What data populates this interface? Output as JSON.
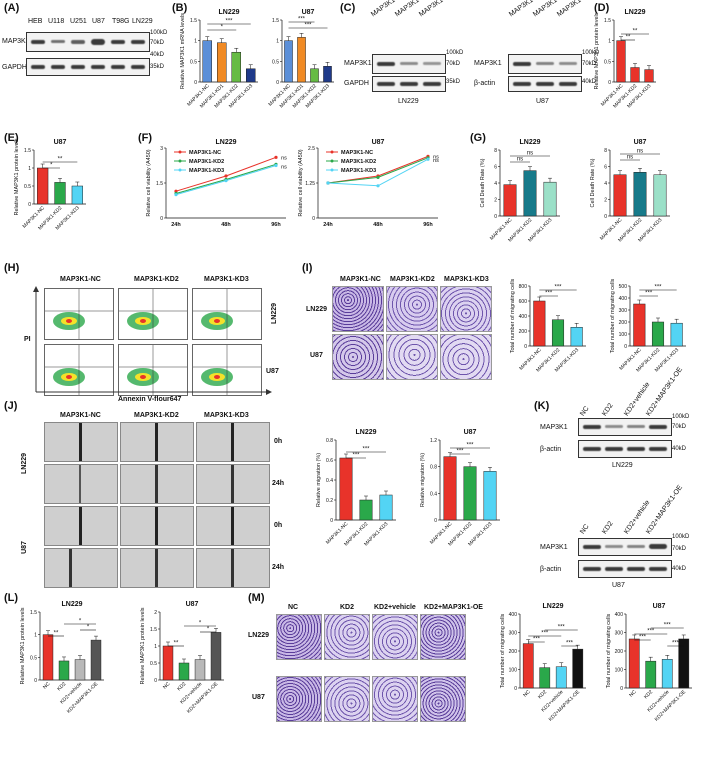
{
  "panel_letters": [
    "(A)",
    "(B)",
    "(C)",
    "(D)",
    "(E)",
    "(F)",
    "(G)",
    "(H)",
    "(I)",
    "(J)",
    "(K)",
    "(L)",
    "(M)"
  ],
  "A": {
    "lanes": [
      "HEB",
      "U118",
      "U251",
      "U87",
      "T98G",
      "LN229"
    ],
    "rows": [
      "MAP3K1",
      "GAPDH"
    ],
    "markers": [
      "100kD",
      "70kD",
      "40kD",
      "35kD"
    ]
  },
  "B": {
    "lines": [
      "LN229",
      "U87"
    ],
    "ylabel": "Relative MAP3K1 mRNA levels",
    "groups": [
      "MAP3K1-NC",
      "MAP3K1-KD1",
      "MAP3K1-KD2",
      "MAP3K1-KD3"
    ],
    "sig": [
      "***",
      "*"
    ]
  },
  "C": {
    "lanes": [
      "MAP3K1-NC",
      "MAP3K1-KD2",
      "MAP3K1-KD3"
    ],
    "left": {
      "rows": [
        "MAP3K1",
        "GAPDH"
      ],
      "markers": [
        "100kD",
        "70kD",
        "35kD"
      ],
      "cell": "LN229"
    },
    "right": {
      "rows": [
        "MAP3K1",
        "β-actin"
      ],
      "markers": [
        "100kD",
        "70kD",
        "40kD"
      ],
      "cell": "U87"
    }
  },
  "D": {
    "title": "LN229",
    "ylabel": "Relative MAP3K1 protein levels",
    "groups": [
      "MAP3K1-NC",
      "MAP3K1-KD2",
      "MAP3K1-KD3"
    ],
    "sig": [
      "**",
      "**"
    ]
  },
  "E": {
    "title": "U87",
    "ylabel": "Relative MAP3K1 protein levels",
    "groups": [
      "MAP3K1-NC",
      "MAP3K1-KD2",
      "MAP3K1-KD3"
    ],
    "sig": [
      "*",
      "**"
    ]
  },
  "F": {
    "titles": [
      "LN229",
      "U87"
    ],
    "ylabel": "Relative cell viability (A450)",
    "x": [
      "24h",
      "48h",
      "96h"
    ],
    "legend": [
      "MAP3K1-NC",
      "MAP3K1-KD2",
      "MAP3K1-KD3"
    ],
    "ns": "ns"
  },
  "G": {
    "titles": [
      "LN229",
      "U87"
    ],
    "ylabel": "Cell Death Rate (%)",
    "groups": [
      "MAP3K1-NC",
      "MAP3K1-KD2",
      "MAP3K1-KD3"
    ],
    "ns": "ns"
  },
  "H": {
    "cols": [
      "MAP3K1-NC",
      "MAP3K1-KD2",
      "MAP3K1-KD3"
    ],
    "rows": [
      "LN229",
      "U87"
    ],
    "ylabel": "PI",
    "xlabel": "Annexin V-flour647"
  },
  "I": {
    "cols": [
      "MAP3K1-NC",
      "MAP3K1-KD2",
      "MAP3K1-KD3"
    ],
    "rows": [
      "LN229",
      "U87"
    ],
    "ylabel": "Total number of migrating cells",
    "groups": [
      "MAP3K1-NC",
      "MAP3K1-KD2",
      "MAP3K1-KD3"
    ],
    "sig": [
      "***",
      "***"
    ]
  },
  "J": {
    "cols": [
      "MAP3K1-NC",
      "MAP3K1-KD2",
      "MAP3K1-KD3"
    ],
    "rows": [
      "LN229",
      "U87"
    ],
    "times": [
      "0h",
      "24h",
      "0h",
      "24h"
    ],
    "titles": [
      "LN229",
      "U87"
    ],
    "ylabel": "Relative migration (%)",
    "groups": [
      "MAP3K1-NC",
      "MAP3K1-KD2",
      "MAP3K1-KD3"
    ],
    "sig": [
      "***",
      "***"
    ]
  },
  "K": {
    "lanes": [
      "NC",
      "KD2",
      "KD2+vehicle",
      "KD2+MAP3K1-OE"
    ],
    "rows": [
      "MAP3K1",
      "β-actin"
    ],
    "markers": [
      "100kD",
      "70kD",
      "40kD"
    ],
    "cells": [
      "LN229",
      "U87"
    ]
  },
  "L": {
    "titles": [
      "LN229",
      "U87"
    ],
    "ylabel": "Relative MAP3K1 protein levels",
    "groups": [
      "NC",
      "KD2",
      "KD2+vehicle",
      "KD2+MAP3K1-OE"
    ],
    "sig": [
      "**",
      "*",
      "*"
    ]
  },
  "M": {
    "cols": [
      "NC",
      "KD2",
      "KD2+vehicle",
      "KD2+MAP3K1-OE"
    ],
    "rows": [
      "LN229",
      "U87"
    ],
    "titles": [
      "LN229",
      "U87"
    ],
    "ylabel": "Total number of migrating cells",
    "groups": [
      "NC",
      "KD2",
      "KD2+vehicle",
      "KD2+MAP3K1-OE"
    ],
    "sig": "***"
  },
  "colors": {
    "nc": "#e8332a",
    "kd1": "#f5a623",
    "kd2": "#2aa84a",
    "kd3": "#53d4f4",
    "blue": "#5b8fd8",
    "orange": "#f08a24",
    "green": "#66bb44",
    "navy": "#1f3a8a",
    "teal": "#177a8a",
    "mint": "#9be0c8",
    "grey": "#b8b8b8",
    "dark": "#555555",
    "black": "#111111",
    "flowhot": "#2aa84a",
    "micro": "#c9b8e6",
    "microdot": "#5a3d9a"
  },
  "chart_data": [
    {
      "panel": "B",
      "type": "bar",
      "title": "LN229",
      "ylabel": "Relative MAP3K1 mRNA levels",
      "categories": [
        "MAP3K1-NC",
        "MAP3K1-KD1",
        "MAP3K1-KD2",
        "MAP3K1-KD3"
      ],
      "values": [
        1.0,
        0.95,
        0.72,
        0.32
      ],
      "ylim": [
        0,
        1.5
      ]
    },
    {
      "panel": "B",
      "type": "bar",
      "title": "U87",
      "ylabel": "Relative MAP3K1 mRNA levels",
      "categories": [
        "MAP3K1-NC",
        "MAP3K1-KD1",
        "MAP3K1-KD2",
        "MAP3K1-KD3"
      ],
      "values": [
        1.0,
        1.08,
        0.32,
        0.38
      ],
      "ylim": [
        0,
        1.5
      ]
    },
    {
      "panel": "D",
      "type": "bar",
      "title": "LN229",
      "ylabel": "Relative MAP3K1 protein levels",
      "categories": [
        "MAP3K1-NC",
        "MAP3K1-KD2",
        "MAP3K1-KD3"
      ],
      "values": [
        1.0,
        0.35,
        0.3
      ],
      "ylim": [
        0,
        1.5
      ]
    },
    {
      "panel": "E",
      "type": "bar",
      "title": "U87",
      "ylabel": "Relative MAP3K1 protein levels",
      "categories": [
        "MAP3K1-NC",
        "MAP3K1-KD2",
        "MAP3K1-KD3"
      ],
      "values": [
        1.0,
        0.6,
        0.5
      ],
      "ylim": [
        0,
        1.5
      ]
    },
    {
      "panel": "F",
      "type": "line",
      "title": "LN229",
      "ylabel": "Relative cell viability (A450)",
      "x": [
        "24h",
        "48h",
        "96h"
      ],
      "series": [
        {
          "name": "MAP3K1-NC",
          "values": [
            1.15,
            1.8,
            2.6
          ]
        },
        {
          "name": "MAP3K1-KD2",
          "values": [
            1.05,
            1.65,
            2.3
          ]
        },
        {
          "name": "MAP3K1-KD3",
          "values": [
            1.0,
            1.6,
            2.25
          ]
        }
      ],
      "ylim": [
        0,
        3
      ]
    },
    {
      "panel": "F",
      "type": "line",
      "title": "U87",
      "ylabel": "Relative cell viability (A450)",
      "x": [
        "24h",
        "48h",
        "96h"
      ],
      "series": [
        {
          "name": "MAP3K1-NC",
          "values": [
            1.25,
            1.5,
            2.2
          ]
        },
        {
          "name": "MAP3K1-KD2",
          "values": [
            1.25,
            1.45,
            2.15
          ]
        },
        {
          "name": "MAP3K1-KD3",
          "values": [
            1.25,
            1.15,
            2.1
          ]
        }
      ],
      "ylim": [
        0,
        2.5
      ]
    },
    {
      "panel": "G",
      "type": "bar",
      "title": "LN229",
      "ylabel": "Cell Death Rate (%)",
      "categories": [
        "MAP3K1-NC",
        "MAP3K1-KD2",
        "MAP3K1-KD3"
      ],
      "values": [
        3.8,
        5.5,
        4.1
      ],
      "ylim": [
        0,
        8
      ]
    },
    {
      "panel": "G",
      "type": "bar",
      "title": "U87",
      "ylabel": "Cell Death Rate (%)",
      "categories": [
        "MAP3K1-NC",
        "MAP3K1-KD2",
        "MAP3K1-KD3"
      ],
      "values": [
        5.0,
        5.3,
        5.0
      ],
      "ylim": [
        0,
        8
      ]
    },
    {
      "panel": "I",
      "type": "bar",
      "title": "LN229",
      "ylabel": "Total number of migrating cells",
      "categories": [
        "MAP3K1-NC",
        "MAP3K1-KD2",
        "MAP3K1-KD3"
      ],
      "values": [
        600,
        350,
        250
      ],
      "ylim": [
        0,
        800
      ]
    },
    {
      "panel": "I",
      "type": "bar",
      "title": "U87",
      "ylabel": "Total number of migrating cells",
      "categories": [
        "MAP3K1-NC",
        "MAP3K1-KD2",
        "MAP3K1-KD3"
      ],
      "values": [
        350,
        200,
        190
      ],
      "ylim": [
        0,
        500
      ]
    },
    {
      "panel": "J",
      "type": "bar",
      "title": "LN229",
      "ylabel": "Relative migration (%)",
      "categories": [
        "MAP3K1-NC",
        "MAP3K1-KD2",
        "MAP3K1-KD3"
      ],
      "values": [
        0.62,
        0.2,
        0.25
      ],
      "ylim": [
        0,
        0.8
      ]
    },
    {
      "panel": "J",
      "type": "bar",
      "title": "U87",
      "ylabel": "Relative migration (%)",
      "categories": [
        "MAP3K1-NC",
        "MAP3K1-KD2",
        "MAP3K1-KD3"
      ],
      "values": [
        0.95,
        0.8,
        0.73
      ],
      "ylim": [
        0,
        1.2
      ]
    },
    {
      "panel": "L",
      "type": "bar",
      "title": "LN229",
      "ylabel": "Relative MAP3K1 protein levels",
      "categories": [
        "NC",
        "KD2",
        "KD2+vehicle",
        "KD2+MAP3K1-OE"
      ],
      "values": [
        1.0,
        0.42,
        0.45,
        0.88
      ],
      "ylim": [
        0,
        1.5
      ]
    },
    {
      "panel": "L",
      "type": "bar",
      "title": "U87",
      "ylabel": "Relative MAP3K1 protein levels",
      "categories": [
        "NC",
        "KD2",
        "KD2+vehicle",
        "KD2+MAP3K1-OE"
      ],
      "values": [
        1.0,
        0.5,
        0.6,
        1.4
      ],
      "ylim": [
        0,
        2.0
      ]
    },
    {
      "panel": "M",
      "type": "bar",
      "title": "LN229",
      "ylabel": "Total number of migrating cells",
      "categories": [
        "NC",
        "KD2",
        "KD2+vehicle",
        "KD2+MAP3K1-OE"
      ],
      "values": [
        240,
        110,
        115,
        210
      ],
      "ylim": [
        0,
        400
      ]
    },
    {
      "panel": "M",
      "type": "bar",
      "title": "U87",
      "ylabel": "Total number of migrating cells",
      "categories": [
        "NC",
        "KD2",
        "KD2+vehicle",
        "KD2+MAP3K1-OE"
      ],
      "values": [
        265,
        145,
        155,
        265
      ],
      "ylim": [
        0,
        400
      ]
    }
  ]
}
